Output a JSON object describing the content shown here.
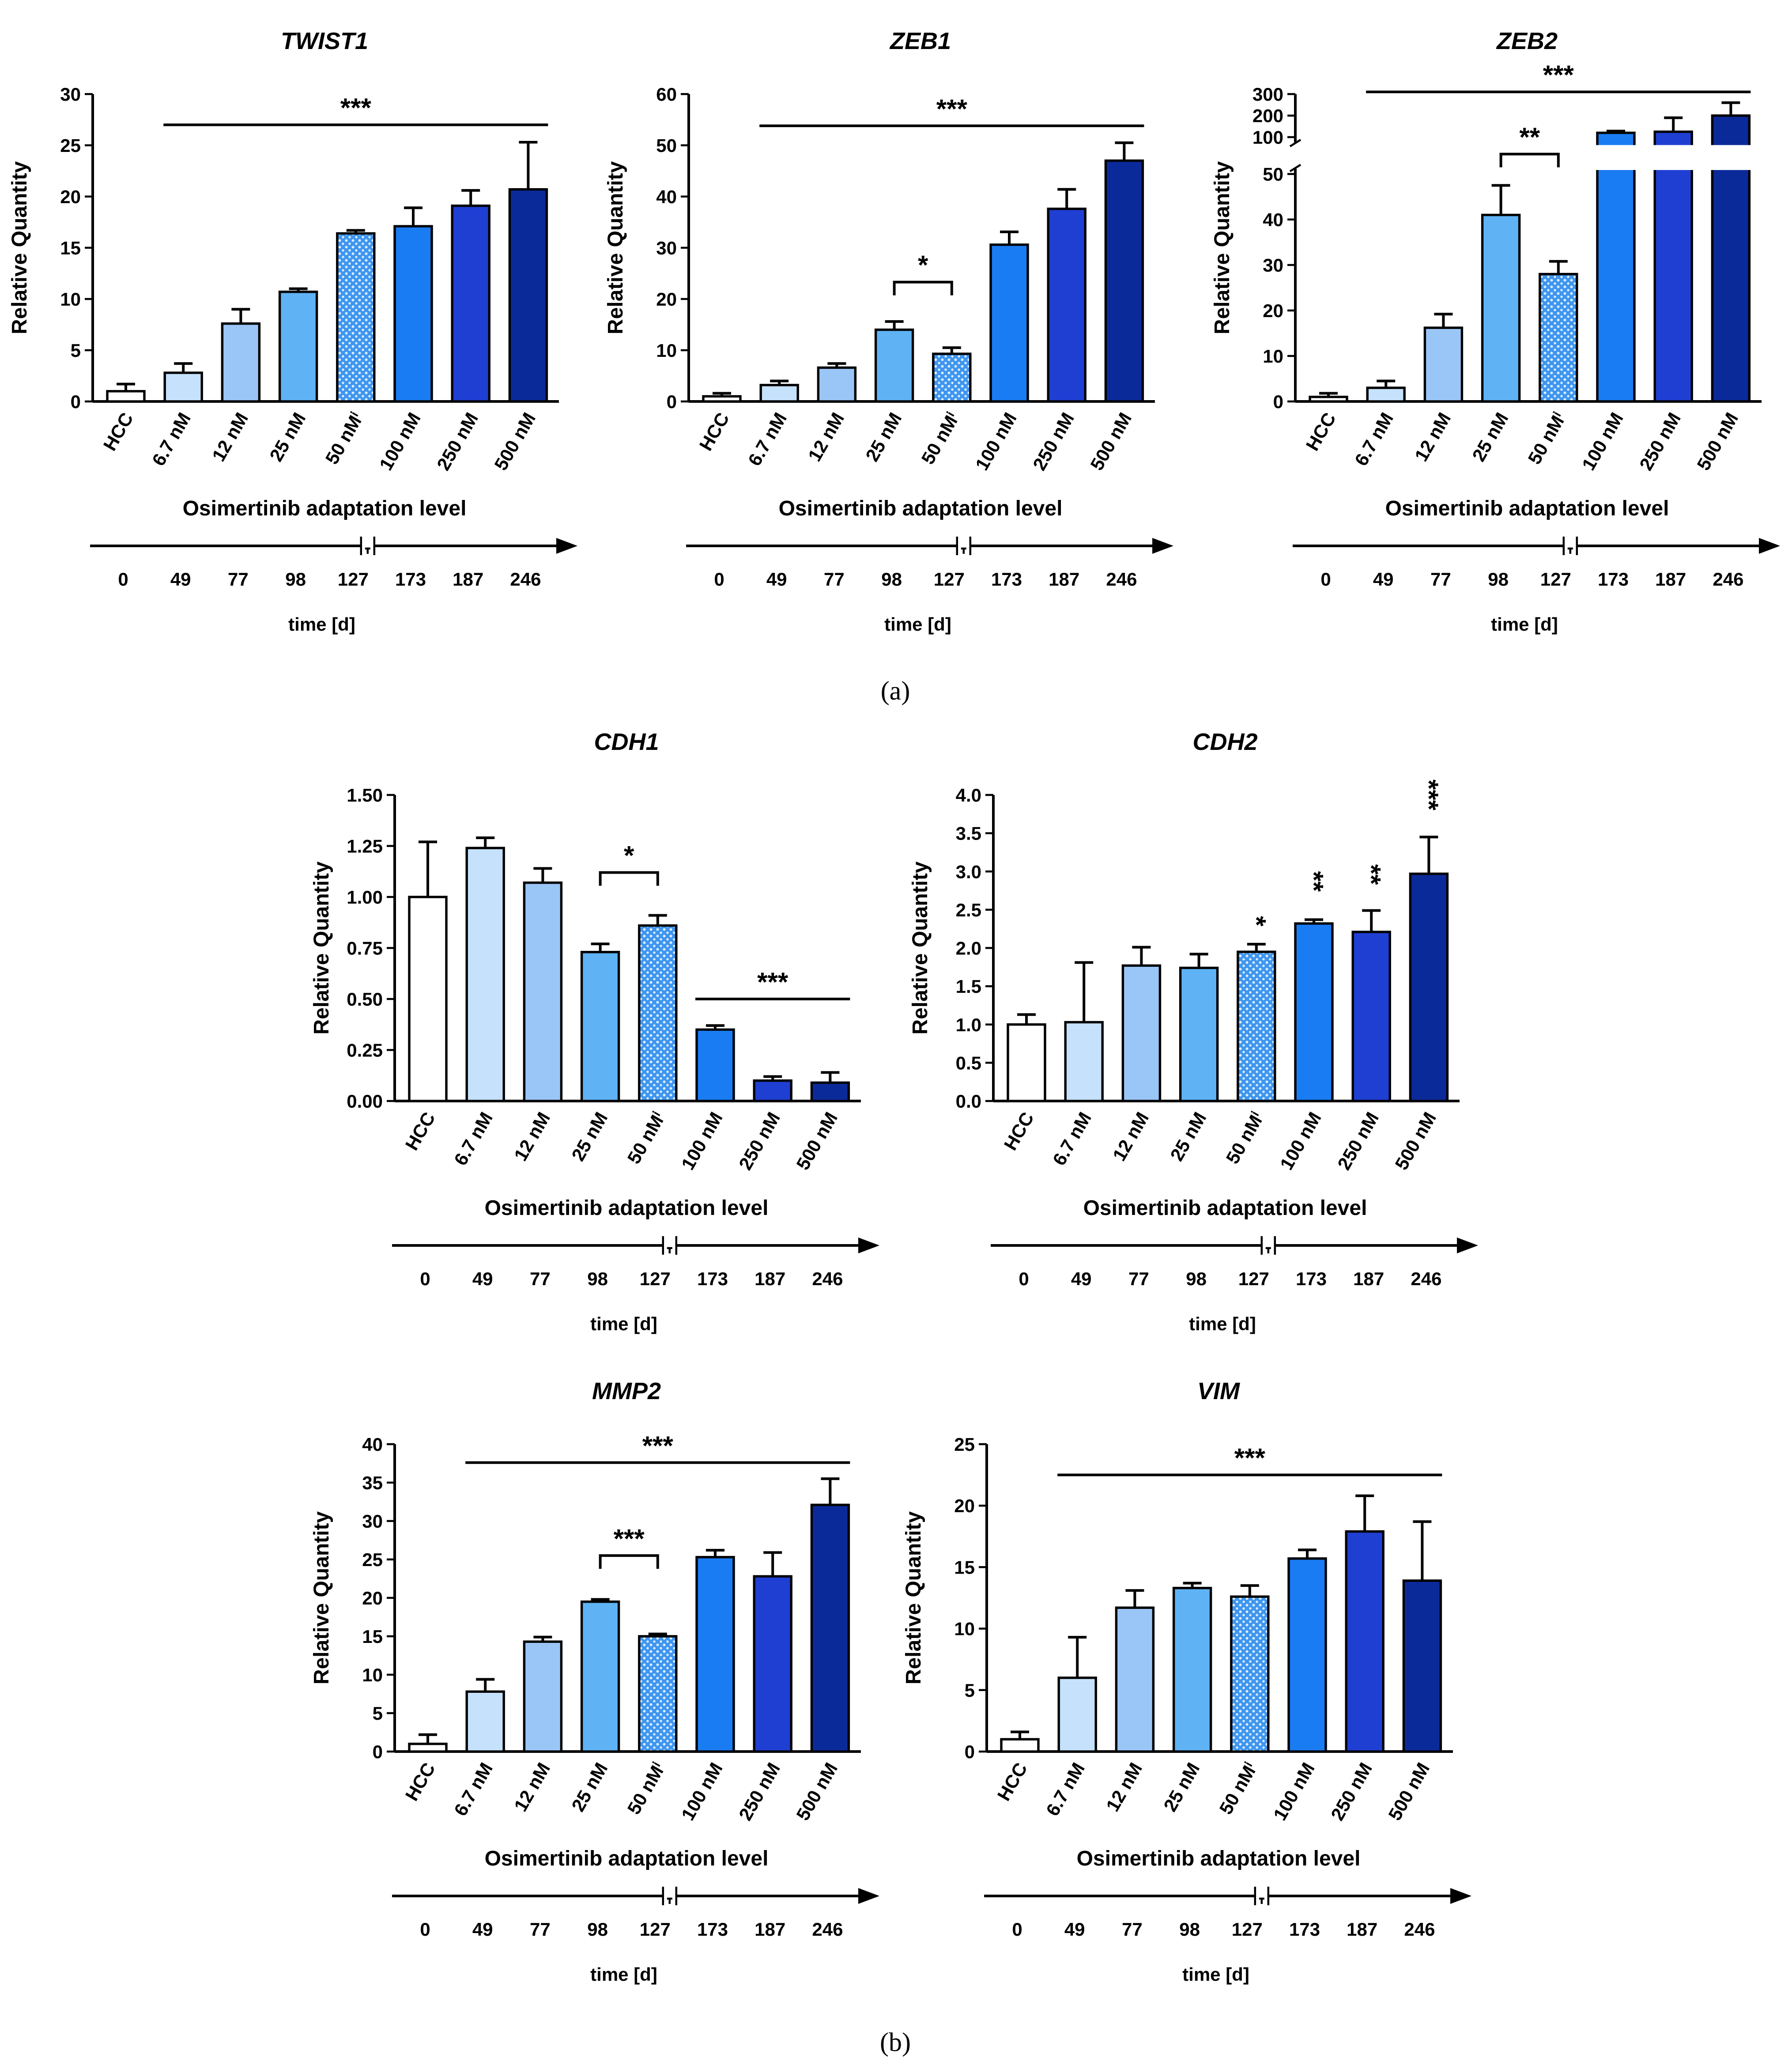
{
  "panels": [
    "(a)",
    "(b)"
  ],
  "chart_data": [
    {
      "type": "bar",
      "title": "TWIST1",
      "y_label": "Relative Quantity",
      "x_label": "Osimertinib adaptation level",
      "time_label": "time [d]",
      "categories": [
        "HCC",
        "6.7 nM",
        "12 nM",
        "25 nM",
        "50 nMⁱ",
        "100 nM",
        "250 nM",
        "500 nM"
      ],
      "timeline": [
        0,
        49,
        77,
        98,
        127,
        173,
        187,
        246
      ],
      "values": [
        1.0,
        2.8,
        7.6,
        10.7,
        16.4,
        17.1,
        19.1,
        20.7
      ],
      "errors": [
        0.7,
        0.9,
        1.4,
        0.3,
        0.3,
        1.8,
        1.5,
        4.6
      ],
      "colors": [
        "#ffffff",
        "#c5e1fb",
        "#9ac6f7",
        "#5fb3f4",
        "#3f96ef",
        "#1a7cf3",
        "#1f3fd3",
        "#0b2a9a"
      ],
      "textures": [
        "solid",
        "solid",
        "solid",
        "solid",
        "dots",
        "solid",
        "solid",
        "solid"
      ],
      "ylim": [
        0,
        30
      ],
      "yticks": [
        0,
        5,
        10,
        15,
        20,
        25,
        30
      ],
      "annotations": [
        {
          "text": "***",
          "style": "line",
          "from": "6.7 nM",
          "to": "500 nM",
          "y": 27
        }
      ]
    },
    {
      "type": "bar",
      "title": "ZEB1",
      "y_label": "Relative Quantity",
      "x_label": "Osimertinib adaptation level",
      "time_label": "time [d]",
      "categories": [
        "HCC",
        "6.7 nM",
        "12 nM",
        "25 nM",
        "50 nMⁱ",
        "100 nM",
        "250 nM",
        "500 nM"
      ],
      "timeline": [
        0,
        49,
        77,
        98,
        127,
        173,
        187,
        246
      ],
      "values": [
        1.0,
        3.2,
        6.6,
        14.0,
        9.3,
        30.6,
        37.6,
        47.0
      ],
      "errors": [
        0.6,
        0.8,
        0.8,
        1.6,
        1.2,
        2.5,
        3.8,
        3.5
      ],
      "colors": [
        "#ffffff",
        "#c5e1fb",
        "#9ac6f7",
        "#5fb3f4",
        "#3f96ef",
        "#1a7cf3",
        "#1f3fd3",
        "#0b2a9a"
      ],
      "textures": [
        "solid",
        "solid",
        "solid",
        "solid",
        "dots",
        "solid",
        "solid",
        "solid"
      ],
      "ylim": [
        0,
        60
      ],
      "yticks": [
        0,
        10,
        20,
        30,
        40,
        50,
        60
      ],
      "annotations": [
        {
          "text": "***",
          "style": "line",
          "from": "6.7 nM",
          "to": "500 nM",
          "y": 53.8
        },
        {
          "text": "*",
          "style": "bracket",
          "from": "25 nM",
          "to": "50 nMⁱ",
          "y": 23.3
        }
      ]
    },
    {
      "type": "bar",
      "title": "ZEB2",
      "y_label": "Relative Quantity",
      "x_label": "Osimertinib adaptation level",
      "time_label": "time [d]",
      "categories": [
        "HCC",
        "6.7 nM",
        "12 nM",
        "25 nM",
        "50 nMⁱ",
        "100 nM",
        "250 nM",
        "500 nM"
      ],
      "timeline": [
        0,
        49,
        77,
        98,
        127,
        173,
        187,
        246
      ],
      "values": [
        1.0,
        3.0,
        16.2,
        41,
        28,
        120,
        125,
        200
      ],
      "errors": [
        0.8,
        1.5,
        3.0,
        6.5,
        2.8,
        8,
        65,
        60
      ],
      "colors": [
        "#ffffff",
        "#c5e1fb",
        "#9ac6f7",
        "#5fb3f4",
        "#3f96ef",
        "#1a7cf3",
        "#1f3fd3",
        "#0b2a9a"
      ],
      "textures": [
        "solid",
        "solid",
        "solid",
        "solid",
        "dots",
        "solid",
        "solid",
        "solid"
      ],
      "ylim": [
        0,
        300
      ],
      "ybreak": [
        50,
        100
      ],
      "yticks": [
        0,
        10,
        20,
        30,
        40,
        50,
        100,
        200,
        300
      ],
      "annotations": [
        {
          "text": "***",
          "style": "line",
          "from": "6.7 nM",
          "to": "500 nM",
          "y": 310
        },
        {
          "text": "**",
          "style": "bracket",
          "from": "25 nM",
          "to": "50 nMⁱ",
          "y": 77
        }
      ]
    },
    {
      "type": "bar",
      "title": "CDH1",
      "y_label": "Relative Quantity",
      "x_label": "Osimertinib adaptation level",
      "time_label": "time [d]",
      "categories": [
        "HCC",
        "6.7 nM",
        "12 nM",
        "25 nM",
        "50 nMⁱ",
        "100 nM",
        "250 nM",
        "500 nM"
      ],
      "timeline": [
        0,
        49,
        77,
        98,
        127,
        173,
        187,
        246
      ],
      "values": [
        1.0,
        1.24,
        1.07,
        0.73,
        0.86,
        0.35,
        0.1,
        0.09
      ],
      "errors": [
        0.27,
        0.05,
        0.07,
        0.04,
        0.05,
        0.02,
        0.02,
        0.05
      ],
      "colors": [
        "#ffffff",
        "#c5e1fb",
        "#9ac6f7",
        "#5fb3f4",
        "#3f96ef",
        "#1a7cf3",
        "#1f3fd3",
        "#0b2a9a"
      ],
      "textures": [
        "solid",
        "solid",
        "solid",
        "solid",
        "dots",
        "solid",
        "solid",
        "solid"
      ],
      "ylim": [
        0,
        1.5
      ],
      "yticks": [
        {
          "value": 0,
          "label": "0.00"
        },
        {
          "value": 0.25,
          "label": "0.25"
        },
        {
          "value": 0.5,
          "label": "0.50"
        },
        {
          "value": 0.75,
          "label": "0.75"
        },
        {
          "value": 1,
          "label": "1.00"
        },
        {
          "value": 1.25,
          "label": "1.25"
        },
        {
          "value": 1.5,
          "label": "1.50"
        }
      ],
      "annotations": [
        {
          "text": "*",
          "style": "bracket",
          "from": "25 nM",
          "to": "50 nMⁱ",
          "y": 1.12
        },
        {
          "text": "***",
          "style": "line",
          "from": "100 nM",
          "to": "500 nM",
          "y": 0.5
        }
      ]
    },
    {
      "type": "bar",
      "title": "CDH2",
      "y_label": "Relative Quantity",
      "x_label": "Osimertinib adaptation level",
      "time_label": "time [d]",
      "categories": [
        "HCC",
        "6.7 nM",
        "12 nM",
        "25 nM",
        "50 nMⁱ",
        "100 nM",
        "250 nM",
        "500 nM"
      ],
      "timeline": [
        0,
        49,
        77,
        98,
        127,
        173,
        187,
        246
      ],
      "values": [
        1.0,
        1.03,
        1.77,
        1.74,
        1.95,
        2.32,
        2.21,
        2.97
      ],
      "errors": [
        0.13,
        0.78,
        0.24,
        0.18,
        0.1,
        0.05,
        0.28,
        0.48
      ],
      "colors": [
        "#ffffff",
        "#c5e1fb",
        "#9ac6f7",
        "#5fb3f4",
        "#3f96ef",
        "#1a7cf3",
        "#1f3fd3",
        "#0b2a9a"
      ],
      "textures": [
        "solid",
        "solid",
        "solid",
        "solid",
        "dots",
        "solid",
        "solid",
        "solid"
      ],
      "ylim": [
        0,
        4
      ],
      "yticks": [
        {
          "value": 0,
          "label": "0.0"
        },
        {
          "value": 0.5,
          "label": "0.5"
        },
        {
          "value": 1,
          "label": "1.0"
        },
        {
          "value": 1.5,
          "label": "1.5"
        },
        {
          "value": 2,
          "label": "2.0"
        },
        {
          "value": 2.5,
          "label": "2.5"
        },
        {
          "value": 3,
          "label": "3.0"
        },
        {
          "value": 3.5,
          "label": "3.5"
        },
        {
          "value": 4,
          "label": "4.0"
        }
      ],
      "annotations": [
        {
          "text": "*",
          "style": "above",
          "from": "50 nMⁱ",
          "to": "50 nMⁱ",
          "y": 2.35
        },
        {
          "text": "**",
          "style": "above",
          "from": "100 nM",
          "to": "100 nM",
          "y": 2.87
        },
        {
          "text": "**",
          "style": "above",
          "from": "250 nM",
          "to": "250 nM",
          "y": 2.96
        },
        {
          "text": "***",
          "style": "above",
          "from": "500 nM",
          "to": "500 nM",
          "y": 4.0
        }
      ]
    },
    {
      "type": "bar",
      "title": "MMP2",
      "y_label": "Relative Quantity",
      "x_label": "Osimertinib adaptation level",
      "time_label": "time [d]",
      "categories": [
        "HCC",
        "6.7 nM",
        "12 nM",
        "25 nM",
        "50 nMⁱ",
        "100 nM",
        "250 nM",
        "500 nM"
      ],
      "timeline": [
        0,
        49,
        77,
        98,
        127,
        173,
        187,
        246
      ],
      "values": [
        1.0,
        7.8,
        14.3,
        19.5,
        15.0,
        25.3,
        22.8,
        32.1
      ],
      "errors": [
        1.2,
        1.6,
        0.6,
        0.3,
        0.3,
        0.9,
        3.1,
        3.4
      ],
      "colors": [
        "#ffffff",
        "#c5e1fb",
        "#9ac6f7",
        "#5fb3f4",
        "#3f96ef",
        "#1a7cf3",
        "#1f3fd3",
        "#0b2a9a"
      ],
      "textures": [
        "solid",
        "solid",
        "solid",
        "solid",
        "dots",
        "solid",
        "solid",
        "solid"
      ],
      "ylim": [
        0,
        40
      ],
      "yticks": [
        0,
        5,
        10,
        15,
        20,
        25,
        30,
        35,
        40
      ],
      "annotations": [
        {
          "text": "***",
          "style": "line",
          "from": "6.7 nM",
          "to": "500 nM",
          "y": 37.6
        },
        {
          "text": "***",
          "style": "bracket",
          "from": "25 nM",
          "to": "50 nMⁱ",
          "y": 25.5
        }
      ]
    },
    {
      "type": "bar",
      "title": "VIM",
      "y_label": "Relative Quantity",
      "x_label": "Osimertinib adaptation level",
      "time_label": "time [d]",
      "categories": [
        "HCC",
        "6.7 nM",
        "12 nM",
        "25 nM",
        "50 nMⁱ",
        "100 nM",
        "250 nM",
        "500 nM"
      ],
      "timeline": [
        0,
        49,
        77,
        98,
        127,
        173,
        187,
        246
      ],
      "values": [
        1.0,
        6.0,
        11.7,
        13.3,
        12.6,
        15.7,
        17.9,
        13.9
      ],
      "errors": [
        0.6,
        3.3,
        1.4,
        0.4,
        0.9,
        0.7,
        2.9,
        4.8
      ],
      "colors": [
        "#ffffff",
        "#c5e1fb",
        "#9ac6f7",
        "#5fb3f4",
        "#3f96ef",
        "#1a7cf3",
        "#1f3fd3",
        "#0b2a9a"
      ],
      "textures": [
        "solid",
        "solid",
        "solid",
        "solid",
        "dots",
        "solid",
        "solid",
        "solid"
      ],
      "ylim": [
        0,
        25
      ],
      "yticks": [
        0,
        5,
        10,
        15,
        20,
        25
      ],
      "annotations": [
        {
          "text": "***",
          "style": "line",
          "from": "6.7 nM",
          "to": "500 nM",
          "y": 22.5
        }
      ]
    }
  ]
}
